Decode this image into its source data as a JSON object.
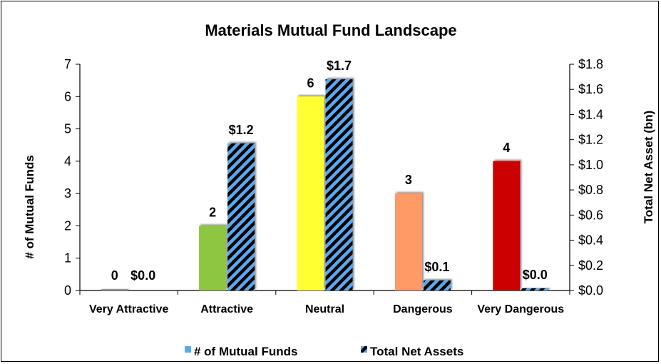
{
  "chart_data": {
    "type": "bar",
    "title": "Materials Mutual Fund Landscape",
    "categories": [
      "Very Attractive",
      "Attractive",
      "Neutral",
      "Dangerous",
      "Very Dangerous"
    ],
    "series": [
      {
        "name": "# of Mutual Funds",
        "axis": "left",
        "values": [
          0,
          2,
          6,
          3,
          4
        ],
        "labels": [
          "0",
          "2",
          "6",
          "3",
          "4"
        ],
        "colors": [
          "#4a90e2",
          "#8dc63f",
          "#ffff33",
          "#ff9966",
          "#cc0000"
        ]
      },
      {
        "name": "Total Net Assets",
        "axis": "right",
        "values": [
          0.0,
          1.17,
          1.68,
          0.08,
          0.01
        ],
        "labels": [
          "$0.0",
          "$1.2",
          "$1.7",
          "$0.1",
          "$0.0"
        ],
        "pattern": "blue-black-diagonal-stripes",
        "colors": [
          "#5aa9f0",
          "#000000"
        ]
      }
    ],
    "ylabel": "# of Mutual Funds",
    "y2label": "Total Net Asset (bn)",
    "ylim": [
      0,
      7
    ],
    "y2lim": [
      0,
      1.8
    ],
    "yticks": [
      "0",
      "1",
      "2",
      "3",
      "4",
      "5",
      "6",
      "7"
    ],
    "y2ticks": [
      "$0.0",
      "$0.2",
      "$0.4",
      "$0.6",
      "$0.8",
      "$1.0",
      "$1.2",
      "$1.4",
      "$1.6",
      "$1.8"
    ],
    "grid": false,
    "legend": "bottom",
    "legend_entries": [
      "# of Mutual Funds",
      "Total Net Assets"
    ]
  }
}
